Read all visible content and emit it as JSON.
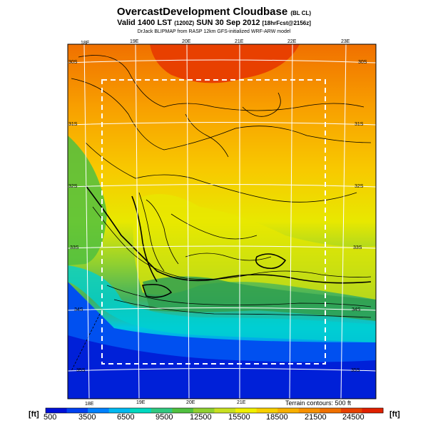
{
  "header": {
    "title": "OvercastDevelopment Cloudbase",
    "title_tag": "(BL CL)",
    "valid": "Valid 1400 LST",
    "valid_tag": "(1200Z)",
    "valid_date": "SUN 30 Sep 2012",
    "forecast_tag": "[18hrFcst@2156z]",
    "credit": "DrJack BLIPMAP from RASP 12km GFS-initialized WRF-ARW model"
  },
  "map": {
    "top_lon_labels": [
      "18E",
      "19E",
      "20E",
      "21E",
      "22E",
      "23E"
    ],
    "bottom_lon_labels": [
      "18E",
      "19E",
      "20E",
      "21E"
    ],
    "lat_labels_left": [
      "30S",
      "31S",
      "32S",
      "33S",
      "34S",
      "35S"
    ],
    "lat_labels_right": [
      "30S",
      "31S",
      "32S",
      "33S",
      "34S",
      "35S"
    ],
    "terrain_note": "Terrain contours: 500 ft"
  },
  "colorbar": {
    "unit": "[ft]",
    "ticks": [
      "500",
      "3500",
      "6500",
      "9500",
      "12500",
      "15500",
      "18500",
      "21500",
      "24500"
    ],
    "colors": [
      "#0010d8",
      "#0040f0",
      "#0080ff",
      "#00b8f0",
      "#00d8c0",
      "#30c880",
      "#50c040",
      "#90d030",
      "#c8e020",
      "#f0f000",
      "#f8d000",
      "#f8b000",
      "#f89000",
      "#f07000",
      "#e84000",
      "#e02000"
    ]
  }
}
